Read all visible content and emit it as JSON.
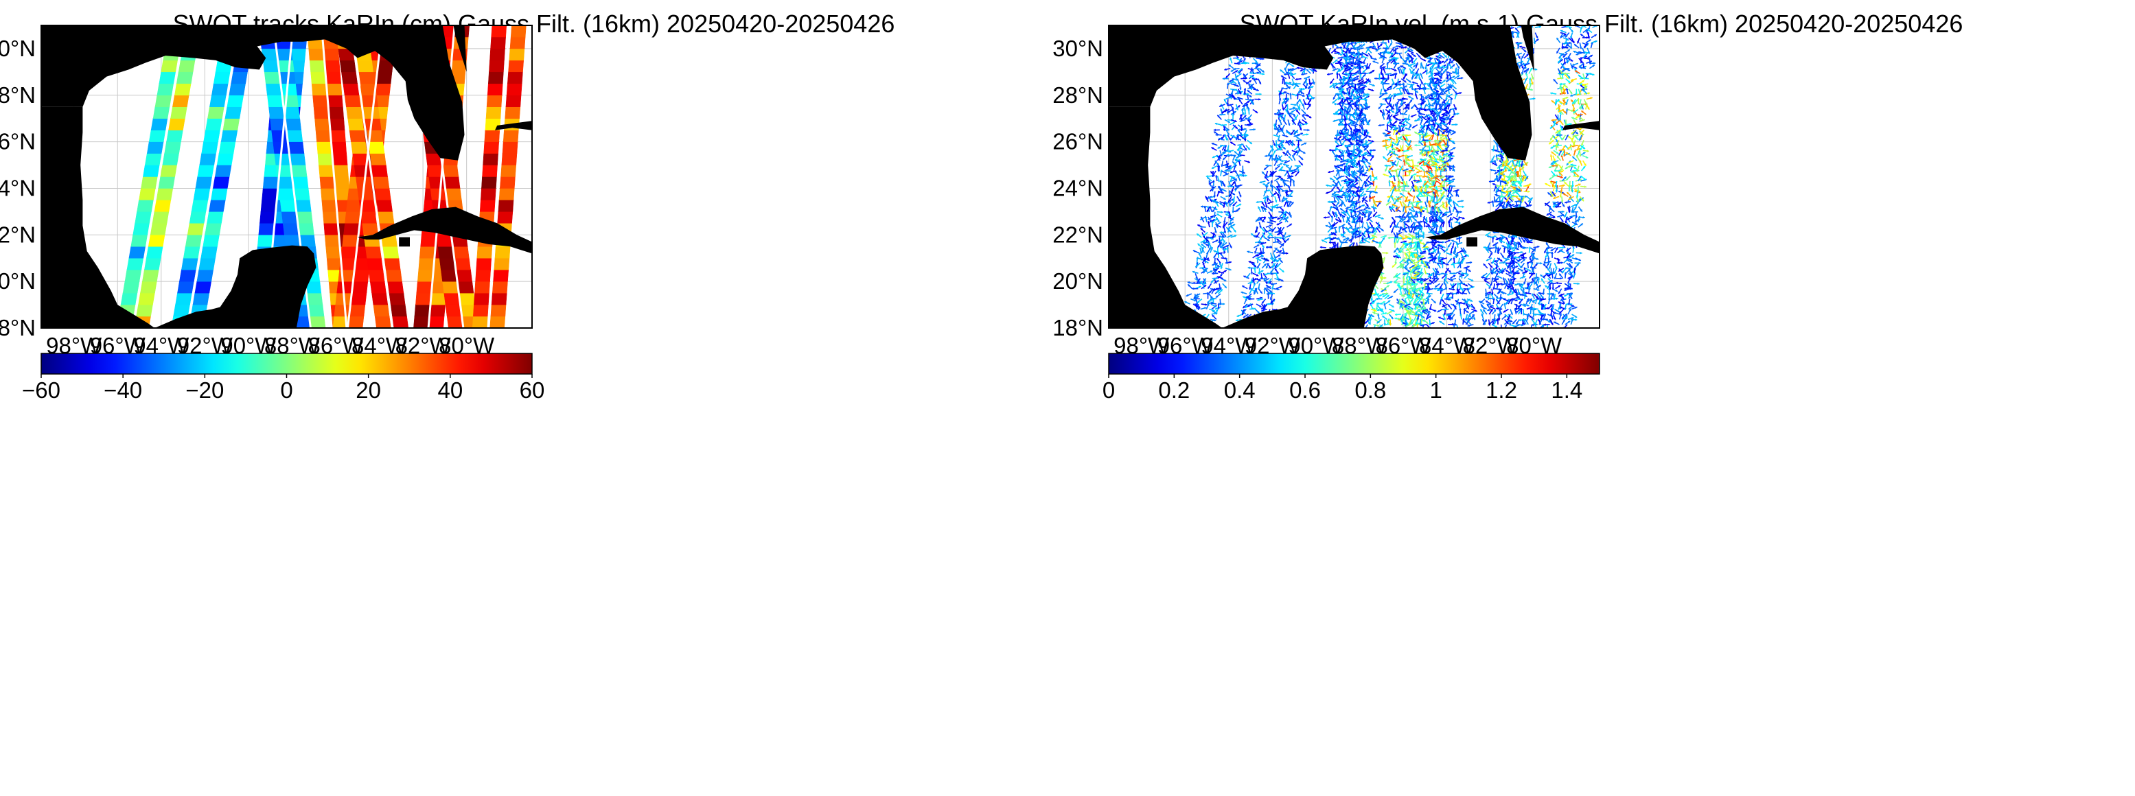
{
  "panels": [
    {
      "title": "SWOT tracks KaRIn (cm) Gauss Filt. (16km) 20250420-20250426",
      "variable": "sea surface height anomaly",
      "display": "swaths",
      "colormap": "jet",
      "colorbar": {
        "min": -60,
        "max": 60,
        "ticks": [
          "−60",
          "−40",
          "−20",
          "0",
          "20",
          "40",
          "60"
        ]
      }
    },
    {
      "title": "SWOT KaRIn vel. (m s-1) Gauss Filt. (16km) 20250420-20250426",
      "variable": "geostrophic velocity",
      "display": "arrows",
      "colormap": "jet",
      "colorbar": {
        "min": 0,
        "max": 1.5,
        "ticks": [
          "0",
          "0.2",
          "0.4",
          "0.6",
          "0.8",
          "1",
          "1.2",
          "1.4"
        ]
      }
    }
  ],
  "map": {
    "lon_range": [
      -99.5,
      -77
    ],
    "lat_range": [
      18,
      31
    ],
    "x_ticks": [
      "98°W",
      "96°W",
      "94°W",
      "92°W",
      "90°W",
      "88°W",
      "86°W",
      "84°W",
      "82°W",
      "80°W"
    ],
    "y_ticks": [
      "30°N",
      "28°N",
      "26°N",
      "24°N",
      "22°N",
      "20°N",
      "18°N"
    ],
    "land_color": "#000000",
    "ocean_color": "#ffffff",
    "grid": true
  },
  "swath_values": [
    {
      "lon": -94.0,
      "value": -5
    },
    {
      "lon": -91.5,
      "value": -12
    },
    {
      "lon": -88.5,
      "value": -25
    },
    {
      "lon": -86.5,
      "value": 35
    },
    {
      "lon": -84.5,
      "value": 40
    },
    {
      "lon": -82.0,
      "value": 45
    },
    {
      "lon": -79.5,
      "value": 40
    }
  ]
}
